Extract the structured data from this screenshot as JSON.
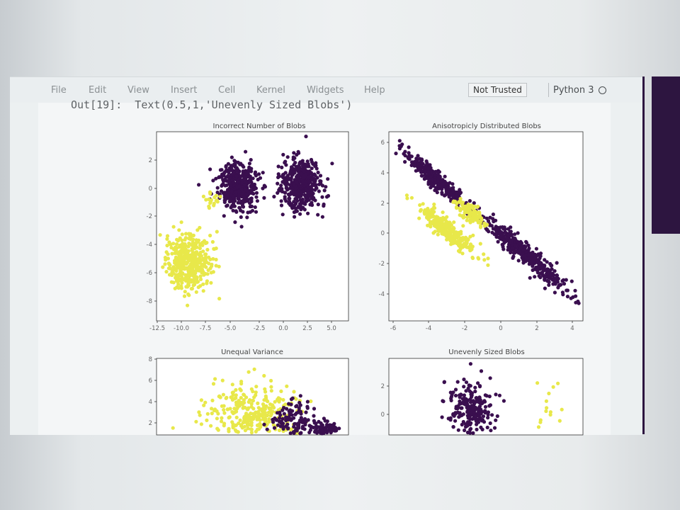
{
  "menu": {
    "items": [
      "File",
      "Edit",
      "View",
      "Insert",
      "Cell",
      "Kernel",
      "Widgets",
      "Help"
    ],
    "not_trusted": "Not Trusted",
    "kernel": "Python 3"
  },
  "output": {
    "text": "Out[19]:  Text(0.5,1,'Unevenly Sized Blobs')"
  },
  "colors": {
    "purple": "#3a0f4f",
    "yellow": "#e8e84a"
  },
  "chart_data": [
    {
      "type": "scatter",
      "title": "Incorrect Number of Blobs",
      "xlim": [
        -12.5,
        6.5
      ],
      "ylim": [
        -9,
        3.5
      ],
      "xticks": [
        "-12.5",
        "-10.0",
        "-7.5",
        "-5.0",
        "-2.5",
        "0.0",
        "2.5",
        "5.0"
      ],
      "yticks": [
        "2",
        "0",
        "-2",
        "-4",
        "-6",
        "-8"
      ],
      "series": [
        {
          "color": "purple",
          "values": [
            [
              -4,
              0
            ],
            [
              2,
              0.5
            ]
          ]
        },
        {
          "color": "yellow",
          "values": [
            [
              -9,
              -5.5
            ],
            [
              -7,
              -1
            ]
          ]
        }
      ]
    },
    {
      "type": "scatter",
      "title": "Anisotropicly Distributed Blobs",
      "xlim": [
        -6.5,
        4.8
      ],
      "ylim": [
        -5.5,
        6.5
      ],
      "xticks": [
        "-6",
        "-4",
        "-2",
        "0",
        "2",
        "4"
      ],
      "yticks": [
        "6",
        "4",
        "2",
        "0",
        "-2",
        "-4"
      ],
      "series": [
        {
          "color": "purple",
          "values": [
            [
              -4,
              3
            ],
            [
              1,
              -1.5
            ]
          ]
        },
        {
          "color": "yellow",
          "values": [
            [
              -3,
              0.5
            ],
            [
              -1.5,
              1.5
            ]
          ]
        }
      ]
    },
    {
      "type": "scatter",
      "title": "Unequal Variance",
      "yticks": [
        "8",
        "6",
        "4",
        "2"
      ],
      "series": [
        {
          "color": "yellow",
          "values": [
            [
              -6,
              2
            ],
            [
              -2,
              2
            ]
          ]
        },
        {
          "color": "purple",
          "values": [
            [
              2,
              2
            ],
            [
              4,
              1
            ]
          ]
        }
      ]
    },
    {
      "type": "scatter",
      "title": "Unevenly Sized Blobs",
      "yticks": [
        "2",
        "0"
      ],
      "series": [
        {
          "color": "purple",
          "values": [
            [
              -5,
              0
            ]
          ]
        },
        {
          "color": "yellow",
          "values": [
            [
              2,
              -1
            ]
          ]
        }
      ]
    }
  ]
}
